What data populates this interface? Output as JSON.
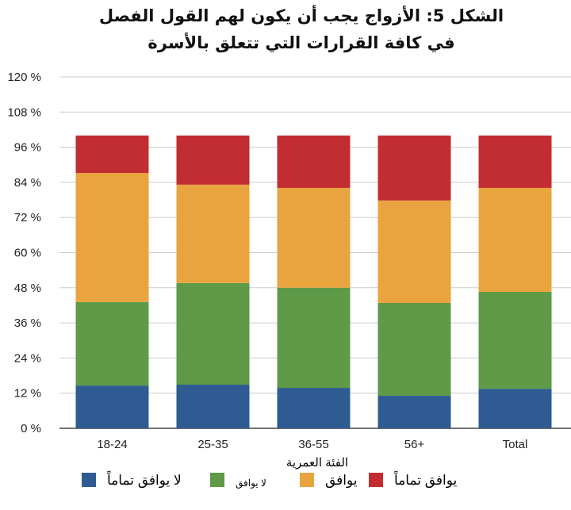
{
  "chart_data": {
    "type": "bar",
    "stacked": true,
    "title": [
      "الشكل 5: الأزواج يجب أن يكون لهم القول الفصل",
      "في كافة القرارات التي تتعلق بالأسرة"
    ],
    "xlabel": "الفئة العمرية",
    "ylabel": "",
    "ylim": [
      0,
      120
    ],
    "yticks": [
      "0 %",
      "12 %",
      "24 %",
      "36 %",
      "48 %",
      "60 %",
      "72 %",
      "84 %",
      "96 %",
      "108 %",
      "120 %"
    ],
    "ytick_values": [
      0,
      12,
      24,
      36,
      48,
      60,
      72,
      84,
      96,
      108,
      120
    ],
    "grid": true,
    "legend_position": "bottom",
    "categories": [
      "18-24",
      "25-35",
      "36-55",
      "56+",
      "Total"
    ],
    "series": [
      {
        "name": "لا يوافق تماماً",
        "color": "#2e5c92",
        "values": [
          14.6,
          14.9,
          13.8,
          11.1,
          13.5
        ]
      },
      {
        "name": "لا يوافق",
        "color": "#5e9a48",
        "values": [
          28.5,
          34.7,
          34.2,
          31.7,
          33.1
        ]
      },
      {
        "name": "يوافق",
        "color": "#e9a43f",
        "values": [
          44.1,
          33.6,
          34.1,
          35.0,
          35.5
        ]
      },
      {
        "name": "يوافق تماماً",
        "color": "#c22d31",
        "values": [
          12.8,
          16.8,
          17.9,
          22.2,
          17.9
        ]
      }
    ]
  }
}
